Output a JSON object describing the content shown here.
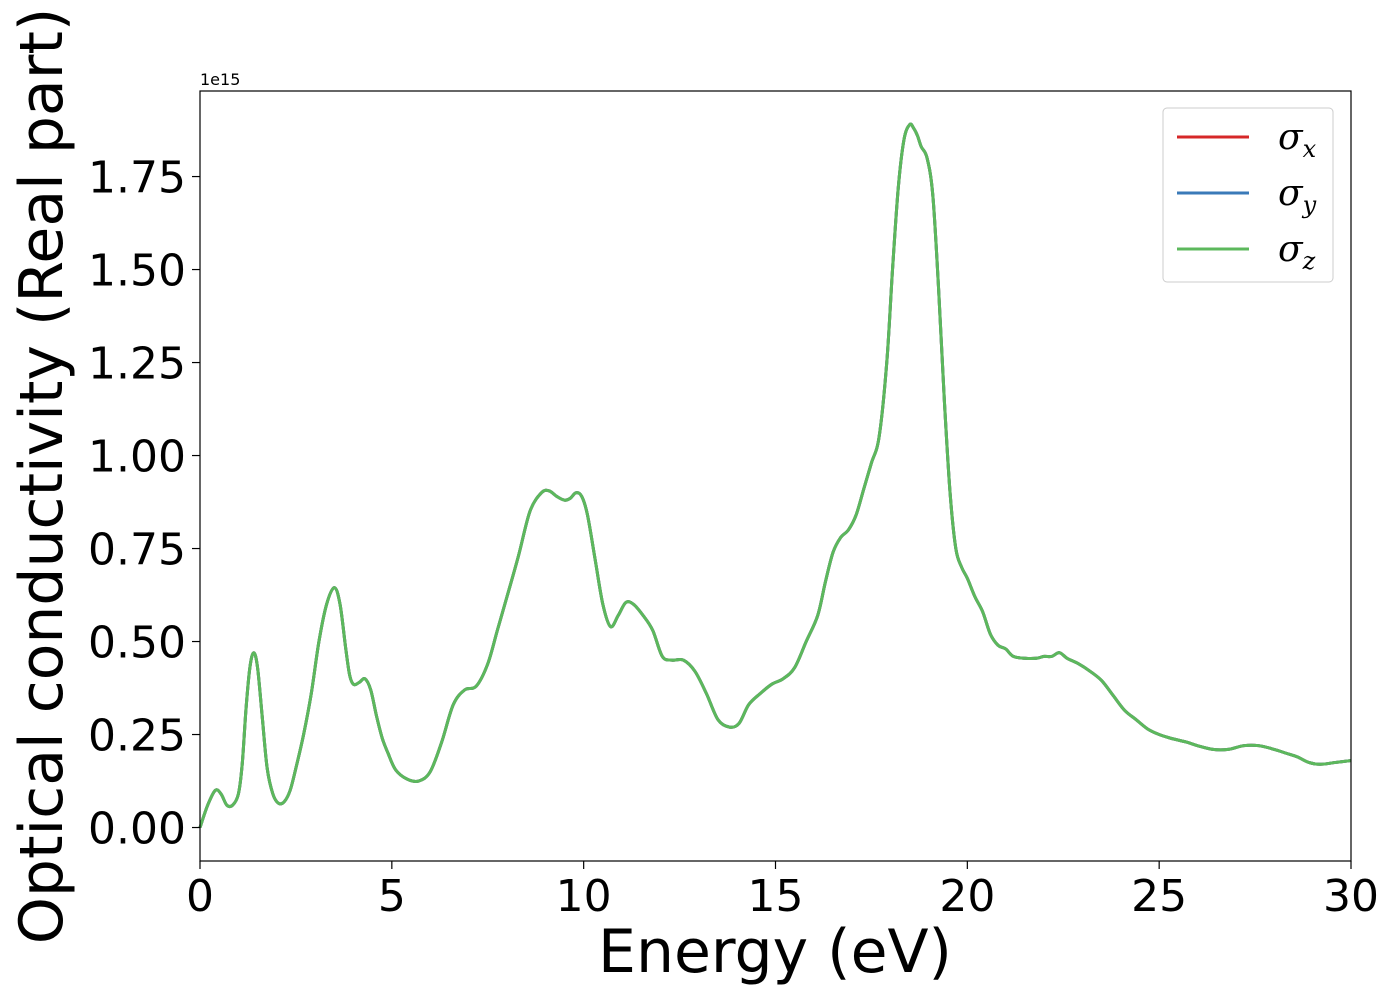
{
  "chart_data": {
    "type": "line",
    "xlabel": "Energy (eV)",
    "ylabel": "Optical conductivity (Real part)",
    "y_offset_text": "1e15",
    "xlim": [
      0,
      30
    ],
    "ylim": [
      -0.09,
      1.98
    ],
    "y_scale": 1000000000000000.0,
    "x_ticks": [
      0,
      5,
      10,
      15,
      20,
      25,
      30
    ],
    "x_tick_labels": [
      "0",
      "5",
      "10",
      "15",
      "20",
      "25",
      "30"
    ],
    "y_ticks": [
      0.0,
      0.25,
      0.5,
      0.75,
      1.0,
      1.25,
      1.5,
      1.75
    ],
    "y_tick_labels": [
      "0.00",
      "0.25",
      "0.50",
      "0.75",
      "1.00",
      "1.25",
      "1.50",
      "1.75"
    ],
    "grid": false,
    "legend_position": "top-right",
    "series": [
      {
        "name": "σ",
        "subscript": "x",
        "color": "#d62728"
      },
      {
        "name": "σ",
        "subscript": "y",
        "color": "#3a7ab8"
      },
      {
        "name": "σ",
        "subscript": "z",
        "color": "#5cb85c"
      }
    ],
    "x": [
      0,
      0.2,
      0.4,
      0.55,
      0.7,
      0.85,
      1.0,
      1.1,
      1.2,
      1.3,
      1.4,
      1.5,
      1.62,
      1.75,
      1.9,
      2.05,
      2.2,
      2.35,
      2.5,
      2.7,
      2.9,
      3.1,
      3.3,
      3.5,
      3.65,
      3.8,
      3.9,
      4.0,
      4.15,
      4.3,
      4.45,
      4.6,
      4.75,
      4.9,
      5.1,
      5.4,
      5.7,
      6.0,
      6.3,
      6.6,
      6.9,
      7.2,
      7.5,
      7.75,
      8.0,
      8.3,
      8.6,
      8.9,
      9.1,
      9.3,
      9.5,
      9.65,
      9.8,
      9.95,
      10.1,
      10.3,
      10.5,
      10.7,
      10.9,
      11.1,
      11.3,
      11.55,
      11.8,
      12.05,
      12.3,
      12.6,
      12.9,
      13.2,
      13.5,
      13.8,
      14.05,
      14.3,
      14.6,
      14.9,
      15.2,
      15.5,
      15.8,
      16.1,
      16.3,
      16.5,
      16.7,
      16.9,
      17.1,
      17.3,
      17.5,
      17.7,
      17.9,
      18.05,
      18.2,
      18.35,
      18.5,
      18.6,
      18.7,
      18.8,
      18.95,
      19.1,
      19.25,
      19.4,
      19.55,
      19.7,
      19.85,
      20.0,
      20.2,
      20.4,
      20.6,
      20.8,
      21.0,
      21.2,
      21.5,
      21.8,
      22.0,
      22.2,
      22.4,
      22.6,
      22.9,
      23.2,
      23.5,
      23.8,
      24.1,
      24.4,
      24.7,
      25.0,
      25.3,
      25.7,
      26.0,
      26.4,
      26.8,
      27.2,
      27.6,
      28.0,
      28.3,
      28.6,
      28.9,
      29.2,
      29.6,
      30.0
    ],
    "values": [
      0.0,
      0.06,
      0.1,
      0.09,
      0.06,
      0.06,
      0.09,
      0.17,
      0.32,
      0.43,
      0.47,
      0.43,
      0.3,
      0.16,
      0.09,
      0.065,
      0.07,
      0.1,
      0.16,
      0.25,
      0.36,
      0.5,
      0.6,
      0.645,
      0.6,
      0.48,
      0.41,
      0.385,
      0.39,
      0.4,
      0.37,
      0.3,
      0.24,
      0.2,
      0.155,
      0.13,
      0.125,
      0.15,
      0.23,
      0.33,
      0.37,
      0.38,
      0.44,
      0.53,
      0.62,
      0.73,
      0.85,
      0.9,
      0.905,
      0.89,
      0.88,
      0.885,
      0.9,
      0.89,
      0.84,
      0.72,
      0.6,
      0.54,
      0.57,
      0.605,
      0.6,
      0.57,
      0.53,
      0.46,
      0.45,
      0.45,
      0.42,
      0.36,
      0.29,
      0.27,
      0.28,
      0.33,
      0.36,
      0.385,
      0.4,
      0.43,
      0.5,
      0.57,
      0.66,
      0.74,
      0.78,
      0.8,
      0.84,
      0.91,
      0.98,
      1.05,
      1.25,
      1.5,
      1.72,
      1.85,
      1.89,
      1.88,
      1.86,
      1.83,
      1.8,
      1.7,
      1.45,
      1.15,
      0.9,
      0.75,
      0.7,
      0.67,
      0.62,
      0.58,
      0.52,
      0.49,
      0.48,
      0.46,
      0.455,
      0.455,
      0.46,
      0.46,
      0.47,
      0.455,
      0.44,
      0.42,
      0.395,
      0.355,
      0.315,
      0.29,
      0.265,
      0.25,
      0.24,
      0.23,
      0.22,
      0.21,
      0.21,
      0.22,
      0.22,
      0.21,
      0.2,
      0.19,
      0.175,
      0.17,
      0.175,
      0.18
    ]
  }
}
